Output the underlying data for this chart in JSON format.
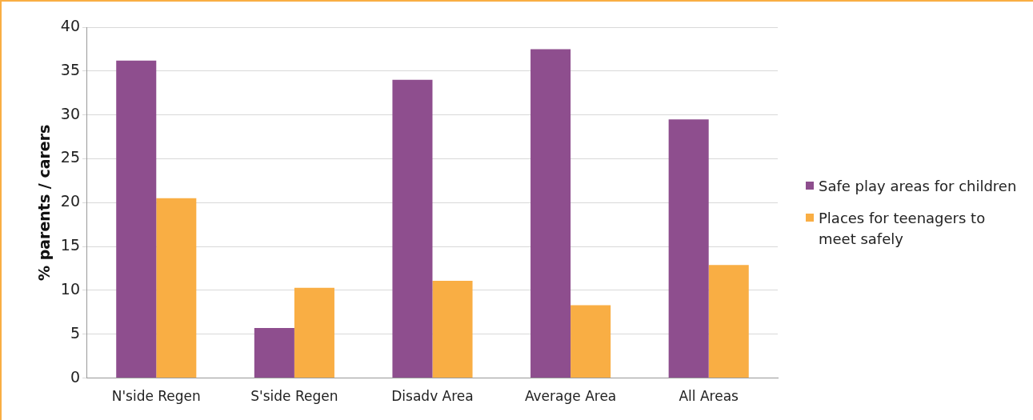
{
  "chart_data": {
    "type": "bar",
    "ylabel": "% parents / carers",
    "categories": [
      "N'side Regen",
      "S'side Regen",
      "Disadv Area",
      "Average Area",
      "All Areas"
    ],
    "series": [
      {
        "name": "Safe play areas for children",
        "color": "#8e4e8e",
        "values": [
          36.2,
          5.7,
          34.0,
          37.5,
          29.5
        ]
      },
      {
        "name": "Places for teenagers to meet safely",
        "color": "#f9ae44",
        "values": [
          20.5,
          10.3,
          11.1,
          8.3,
          12.9
        ]
      }
    ],
    "ylim": [
      0,
      40
    ],
    "yticks": [
      0,
      5,
      10,
      15,
      20,
      25,
      30,
      35,
      40
    ],
    "grid": "y",
    "legend": "right"
  }
}
